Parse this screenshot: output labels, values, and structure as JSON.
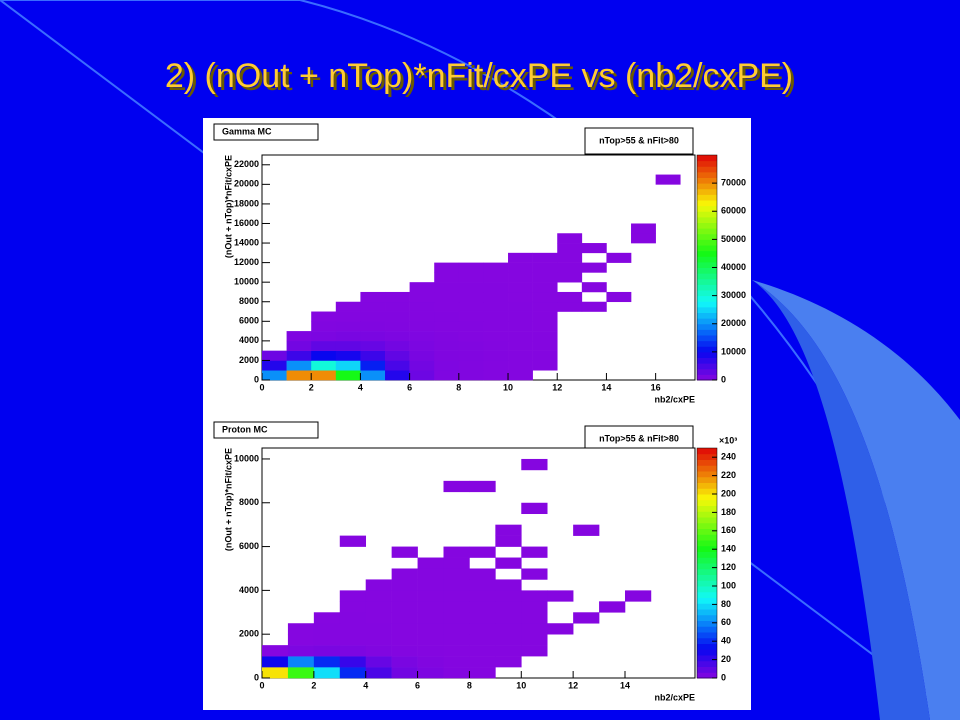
{
  "slide": {
    "title": "2) (nOut + nTop)*nFit/cxPE vs (nb2/cxPE)"
  },
  "chart_data": [
    {
      "type": "heatmap",
      "title": "Gamma MC",
      "subtitle": "nTop>55 & nFit>80",
      "xlabel": "nb2/cxPE",
      "ylabel": "(nOut + nTop)*nFit/cxPE",
      "xlim": [
        0,
        17.6
      ],
      "xticks": [
        0,
        2,
        4,
        6,
        8,
        10,
        12,
        14,
        16
      ],
      "ylim": [
        0,
        23000
      ],
      "yticks": [
        0,
        2000,
        4000,
        6000,
        8000,
        10000,
        12000,
        14000,
        16000,
        18000,
        20000,
        22000
      ],
      "zlim": [
        0,
        80000
      ],
      "zticks": [
        0,
        10000,
        20000,
        30000,
        40000,
        50000,
        60000,
        70000
      ],
      "rows": [
        {
          "y": 0,
          "x": [
            0,
            1,
            2,
            3,
            4,
            5,
            6,
            7,
            8,
            9,
            10
          ],
          "values": [
            20000,
            70000,
            70000,
            45000,
            20000,
            8000,
            2000,
            500,
            300,
            200,
            100
          ]
        },
        {
          "y": 1000,
          "x": [
            0,
            1,
            2,
            3,
            4,
            5,
            6,
            7,
            8,
            9,
            10,
            11
          ],
          "values": [
            8000,
            20000,
            30000,
            25000,
            12000,
            5000,
            1500,
            500,
            300,
            200,
            100,
            50
          ]
        },
        {
          "y": 2000,
          "x": [
            0,
            1,
            2,
            3,
            4,
            5,
            6,
            7,
            8,
            9,
            10,
            11
          ],
          "values": [
            2000,
            6000,
            10000,
            9000,
            6000,
            3000,
            1000,
            400,
            300,
            200,
            100,
            50
          ]
        },
        {
          "y": 3000,
          "x": [
            1,
            2,
            3,
            4,
            5,
            6,
            7,
            8,
            9,
            10,
            11
          ],
          "values": [
            1500,
            3000,
            3000,
            2500,
            1500,
            800,
            400,
            300,
            200,
            100,
            50
          ]
        },
        {
          "y": 4000,
          "x": [
            1,
            2,
            3,
            4,
            5,
            6,
            7,
            8,
            9,
            10,
            11
          ],
          "values": [
            500,
            800,
            1000,
            900,
            700,
            500,
            300,
            200,
            100,
            80,
            40
          ]
        },
        {
          "y": 5000,
          "x": [
            2,
            3,
            4,
            5,
            6,
            7,
            8,
            9,
            10,
            11
          ],
          "values": [
            300,
            400,
            400,
            300,
            250,
            200,
            150,
            100,
            50,
            30
          ]
        },
        {
          "y": 6000,
          "x": [
            2,
            3,
            4,
            5,
            6,
            7,
            8,
            9,
            10,
            11
          ],
          "values": [
            100,
            200,
            250,
            250,
            200,
            150,
            100,
            80,
            40,
            20
          ]
        },
        {
          "y": 7000,
          "x": [
            3,
            4,
            5,
            6,
            7,
            8,
            9,
            10,
            11,
            12,
            13
          ],
          "values": [
            100,
            150,
            150,
            150,
            100,
            80,
            60,
            40,
            20,
            10,
            10
          ]
        },
        {
          "y": 8000,
          "x": [
            4,
            5,
            6,
            7,
            8,
            9,
            10,
            11,
            12,
            14
          ],
          "values": [
            80,
            100,
            100,
            80,
            60,
            40,
            30,
            20,
            10,
            10
          ]
        },
        {
          "y": 9000,
          "x": [
            6,
            7,
            8,
            9,
            10,
            11,
            13
          ],
          "values": [
            50,
            60,
            50,
            40,
            30,
            20,
            10
          ]
        },
        {
          "y": 10000,
          "x": [
            7,
            8,
            9,
            10,
            11,
            12
          ],
          "values": [
            30,
            30,
            30,
            20,
            20,
            10
          ]
        },
        {
          "y": 11000,
          "x": [
            7,
            8,
            9,
            10,
            11,
            12,
            13
          ],
          "values": [
            20,
            20,
            20,
            20,
            10,
            10,
            10
          ]
        },
        {
          "y": 12000,
          "x": [
            10,
            11,
            12,
            14
          ],
          "values": [
            10,
            10,
            10,
            10
          ]
        },
        {
          "y": 13000,
          "x": [
            12,
            13
          ],
          "values": [
            10,
            10
          ]
        },
        {
          "y": 14000,
          "x": [
            12,
            15
          ],
          "values": [
            10,
            10
          ]
        },
        {
          "y": 15000,
          "x": [
            15
          ],
          "values": [
            10
          ]
        },
        {
          "y": 20000,
          "x": [
            16
          ],
          "values": [
            10
          ]
        }
      ]
    },
    {
      "type": "heatmap",
      "title": "Proton MC",
      "subtitle": "nTop>55 & nFit>80",
      "xlabel": "nb2/cxPE",
      "ylabel": "(nOut + nTop)*nFit/cxPE",
      "xlim": [
        0,
        16.7
      ],
      "xticks": [
        0,
        2,
        4,
        6,
        8,
        10,
        12,
        14
      ],
      "ylim": [
        0,
        10500
      ],
      "yticks": [
        0,
        2000,
        4000,
        6000,
        8000,
        10000
      ],
      "zlim": [
        0,
        250000
      ],
      "zexponent": "×10³",
      "zticks": [
        {
          "value": 0,
          "label": "0"
        },
        {
          "value": 20000,
          "label": "20"
        },
        {
          "value": 40000,
          "label": "40"
        },
        {
          "value": 60000,
          "label": "60"
        },
        {
          "value": 80000,
          "label": "80"
        },
        {
          "value": 100000,
          "label": "100"
        },
        {
          "value": 120000,
          "label": "120"
        },
        {
          "value": 140000,
          "label": "140"
        },
        {
          "value": 160000,
          "label": "160"
        },
        {
          "value": 180000,
          "label": "180"
        },
        {
          "value": 200000,
          "label": "200"
        },
        {
          "value": 220000,
          "label": "220"
        },
        {
          "value": 240000,
          "label": "240"
        }
      ],
      "rows": [
        {
          "y": 0,
          "x": [
            0,
            1,
            2,
            3,
            4,
            5,
            6,
            7,
            8
          ],
          "values": [
            200000,
            150000,
            80000,
            40000,
            15000,
            5000,
            2000,
            500,
            100
          ]
        },
        {
          "y": 500,
          "x": [
            0,
            1,
            2,
            3,
            4,
            5,
            6,
            7,
            8,
            9
          ],
          "values": [
            30000,
            60000,
            40000,
            20000,
            8000,
            3000,
            1000,
            300,
            100,
            50
          ]
        },
        {
          "y": 1000,
          "x": [
            0,
            1,
            2,
            3,
            4,
            5,
            6,
            7,
            8,
            9,
            10
          ],
          "values": [
            100,
            2000,
            3000,
            2000,
            1000,
            500,
            200,
            100,
            50,
            30,
            20
          ]
        },
        {
          "y": 1500,
          "x": [
            1,
            2,
            3,
            4,
            5,
            6,
            7,
            8,
            9,
            10
          ],
          "values": [
            100,
            200,
            200,
            150,
            100,
            80,
            60,
            40,
            20,
            10
          ]
        },
        {
          "y": 2000,
          "x": [
            1,
            2,
            3,
            4,
            5,
            6,
            7,
            8,
            9,
            10,
            11
          ],
          "values": [
            80,
            150,
            150,
            120,
            100,
            80,
            50,
            30,
            20,
            10,
            10
          ]
        },
        {
          "y": 2500,
          "x": [
            2,
            3,
            4,
            5,
            6,
            7,
            8,
            9,
            10,
            12
          ],
          "values": [
            100,
            120,
            100,
            80,
            60,
            40,
            20,
            10,
            10,
            10
          ]
        },
        {
          "y": 3000,
          "x": [
            3,
            4,
            5,
            6,
            7,
            8,
            9,
            10,
            13
          ],
          "values": [
            80,
            80,
            60,
            50,
            30,
            20,
            10,
            10,
            10
          ]
        },
        {
          "y": 3500,
          "x": [
            3,
            4,
            5,
            6,
            7,
            8,
            9,
            10,
            11,
            14
          ],
          "values": [
            40,
            60,
            50,
            40,
            20,
            10,
            10,
            10,
            10,
            10
          ]
        },
        {
          "y": 4000,
          "x": [
            4,
            5,
            6,
            7,
            8,
            9
          ],
          "values": [
            30,
            30,
            20,
            20,
            10,
            10
          ]
        },
        {
          "y": 4500,
          "x": [
            5,
            6,
            7,
            8,
            10
          ],
          "values": [
            10,
            10,
            10,
            10,
            10
          ]
        },
        {
          "y": 5000,
          "x": [
            6,
            7,
            9
          ],
          "values": [
            10,
            10,
            10
          ]
        },
        {
          "y": 5500,
          "x": [
            5,
            7,
            8,
            10
          ],
          "values": [
            10,
            10,
            10,
            10
          ]
        },
        {
          "y": 6000,
          "x": [
            3,
            9
          ],
          "values": [
            10,
            10
          ]
        },
        {
          "y": 6500,
          "x": [
            9,
            12
          ],
          "values": [
            10,
            10
          ]
        },
        {
          "y": 7500,
          "x": [
            10
          ],
          "values": [
            10
          ]
        },
        {
          "y": 8500,
          "x": [
            7,
            8
          ],
          "values": [
            10,
            10
          ]
        },
        {
          "y": 9500,
          "x": [
            10
          ],
          "values": [
            10
          ]
        }
      ]
    }
  ]
}
